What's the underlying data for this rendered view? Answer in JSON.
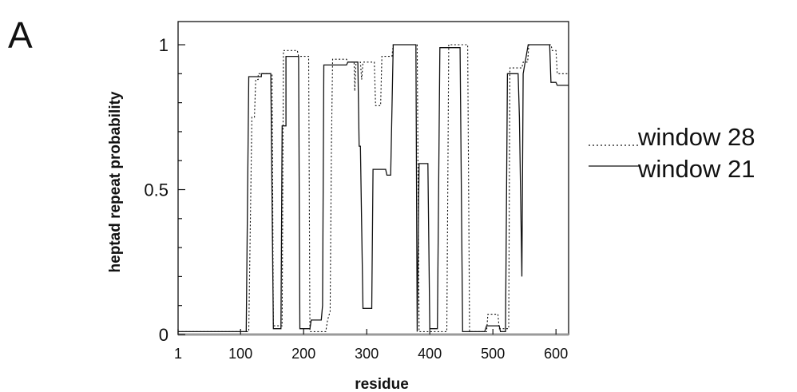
{
  "panel_label": "A",
  "chart_data": {
    "type": "line",
    "xlabel": "residue",
    "ylabel": "heptad repeat probability",
    "xlim": [
      1,
      620
    ],
    "ylim": [
      0,
      1.08
    ],
    "x_ticks": [
      1,
      100,
      200,
      300,
      400,
      500,
      600
    ],
    "y_ticks": [
      0,
      0.5,
      1
    ],
    "y_tick_labels": [
      "0",
      "0.5",
      "1"
    ],
    "grid": false,
    "legend_position": "right",
    "series": [
      {
        "name": "window 28",
        "style": "dotted",
        "points": [
          [
            1,
            0.01
          ],
          [
            113,
            0.01
          ],
          [
            118,
            0.75
          ],
          [
            122,
            0.75
          ],
          [
            124,
            0.88
          ],
          [
            128,
            0.88
          ],
          [
            128,
            0.9
          ],
          [
            150,
            0.9
          ],
          [
            152,
            0.03
          ],
          [
            166,
            0.03
          ],
          [
            168,
            0.98
          ],
          [
            190,
            0.98
          ],
          [
            192,
            0.96
          ],
          [
            208,
            0.96
          ],
          [
            210,
            0.01
          ],
          [
            235,
            0.01
          ],
          [
            238,
            0.05
          ],
          [
            242,
            0.08
          ],
          [
            244,
            0.65
          ],
          [
            246,
            0.95
          ],
          [
            268,
            0.95
          ],
          [
            270,
            0.94
          ],
          [
            280,
            0.94
          ],
          [
            281,
            0.84
          ],
          [
            283,
            0.94
          ],
          [
            290,
            0.94
          ],
          [
            292,
            0.88
          ],
          [
            294,
            0.94
          ],
          [
            312,
            0.94
          ],
          [
            314,
            0.79
          ],
          [
            322,
            0.79
          ],
          [
            324,
            0.96
          ],
          [
            340,
            0.96
          ],
          [
            342,
            1.0
          ],
          [
            380,
            1.0
          ],
          [
            383,
            0.01
          ],
          [
            427,
            0.01
          ],
          [
            430,
            1.0
          ],
          [
            460,
            1.0
          ],
          [
            463,
            0.01
          ],
          [
            490,
            0.01
          ],
          [
            492,
            0.07
          ],
          [
            508,
            0.07
          ],
          [
            510,
            0.02
          ],
          [
            525,
            0.02
          ],
          [
            527,
            0.92
          ],
          [
            546,
            0.92
          ],
          [
            548,
            0.94
          ],
          [
            555,
            0.94
          ],
          [
            557,
            1.0
          ],
          [
            592,
            1.0
          ],
          [
            594,
            0.98
          ],
          [
            600,
            0.98
          ],
          [
            602,
            0.9
          ],
          [
            620,
            0.9
          ]
        ]
      },
      {
        "name": "window 21",
        "style": "solid",
        "points": [
          [
            1,
            0.01
          ],
          [
            109,
            0.01
          ],
          [
            113,
            0.89
          ],
          [
            133,
            0.89
          ],
          [
            133,
            0.9
          ],
          [
            148,
            0.9
          ],
          [
            152,
            0.02
          ],
          [
            164,
            0.02
          ],
          [
            166,
            0.72
          ],
          [
            172,
            0.72
          ],
          [
            172,
            0.96
          ],
          [
            192,
            0.96
          ],
          [
            194,
            0.02
          ],
          [
            210,
            0.02
          ],
          [
            212,
            0.05
          ],
          [
            228,
            0.05
          ],
          [
            230,
            0.1
          ],
          [
            232,
            0.93
          ],
          [
            268,
            0.93
          ],
          [
            270,
            0.94
          ],
          [
            286,
            0.94
          ],
          [
            288,
            0.65
          ],
          [
            290,
            0.65
          ],
          [
            294,
            0.09
          ],
          [
            308,
            0.09
          ],
          [
            310,
            0.57
          ],
          [
            330,
            0.57
          ],
          [
            332,
            0.55
          ],
          [
            338,
            0.55
          ],
          [
            342,
            1.0
          ],
          [
            378,
            1.0
          ],
          [
            380,
            0.01
          ],
          [
            383,
            0.59
          ],
          [
            397,
            0.59
          ],
          [
            400,
            0.02
          ],
          [
            412,
            0.02
          ],
          [
            416,
            0.99
          ],
          [
            448,
            0.99
          ],
          [
            452,
            0.01
          ],
          [
            487,
            0.01
          ],
          [
            490,
            0.03
          ],
          [
            510,
            0.03
          ],
          [
            512,
            0.01
          ],
          [
            520,
            0.01
          ],
          [
            523,
            0.9
          ],
          [
            540,
            0.9
          ],
          [
            542,
            0.75
          ],
          [
            546,
            0.2
          ],
          [
            548,
            0.9
          ],
          [
            556,
            1.0
          ],
          [
            590,
            1.0
          ],
          [
            592,
            0.87
          ],
          [
            600,
            0.87
          ],
          [
            602,
            0.86
          ],
          [
            620,
            0.86
          ]
        ]
      }
    ]
  }
}
